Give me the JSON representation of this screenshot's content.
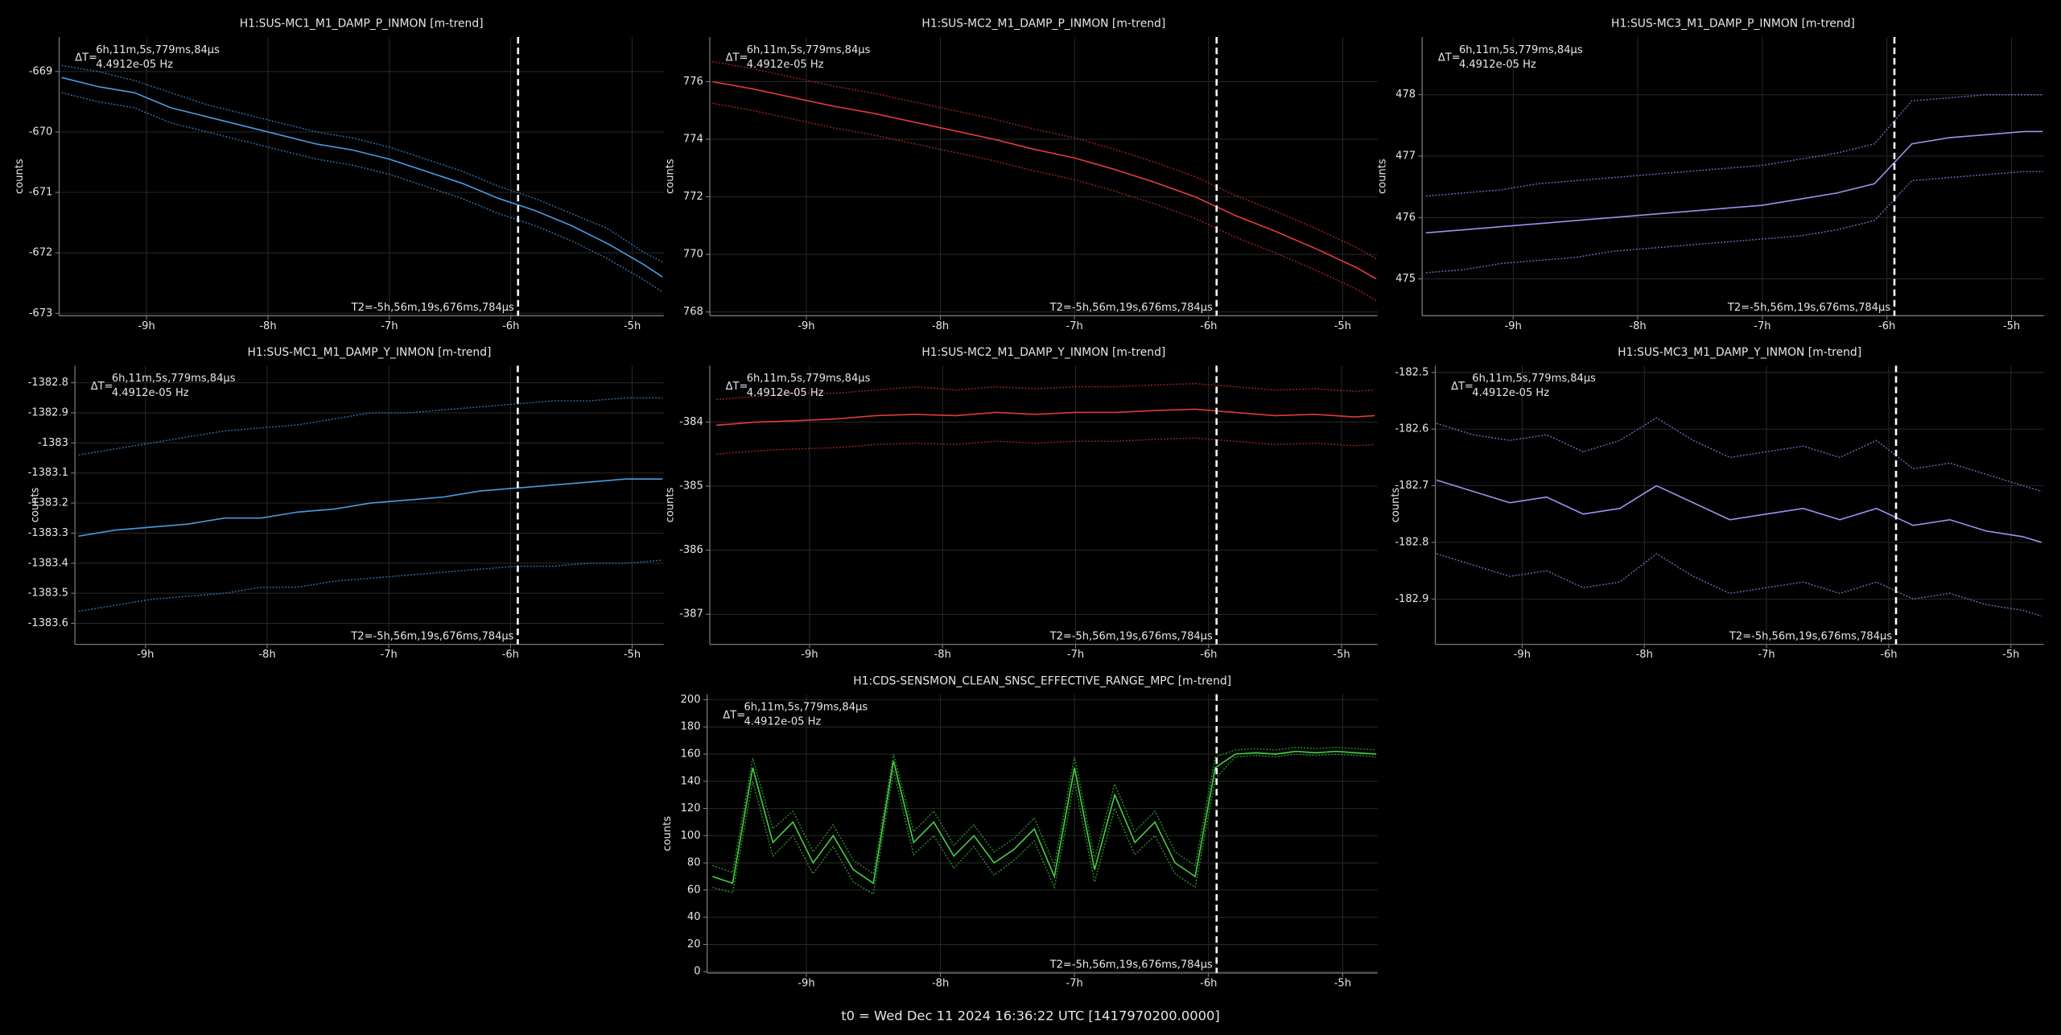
{
  "chart_data": [
    {
      "type": "line",
      "title": "H1:SUS-MC1_M1_DAMP_P_INMON [m-trend]",
      "y_label": "counts",
      "grid": true,
      "delta_label": "ΔT=",
      "delta_value": "6h,11m,5s,779ms,84µs",
      "delta_freq": "4.4912e-05 Hz",
      "t2_label": "T2=-5h,56m,19s,676ms,784µs",
      "cursor_x": -5.94,
      "xlim": [
        -9.72,
        -4.74
      ],
      "xticks": [
        {
          "value": -9,
          "label": "-9h"
        },
        {
          "value": -8,
          "label": "-8h"
        },
        {
          "value": -7,
          "label": "-7h"
        },
        {
          "value": -6,
          "label": "-6h"
        },
        {
          "value": -5,
          "label": "-5h"
        }
      ],
      "ylim": [
        -673.04,
        -668.43
      ],
      "yticks": [
        -673,
        -672,
        -671,
        -670,
        -669
      ],
      "x": [
        -9.7,
        -9.4,
        -9.1,
        -8.8,
        -8.5,
        -8.2,
        -7.9,
        -7.6,
        -7.3,
        -7.0,
        -6.7,
        -6.4,
        -6.1,
        -5.8,
        -5.5,
        -5.2,
        -4.9,
        -4.75
      ],
      "series": [
        {
          "color": "#2f6ea8",
          "style": "dotted",
          "values": [
            -668.9,
            -669.0,
            -669.15,
            -669.35,
            -669.55,
            -669.7,
            -669.85,
            -670.0,
            -670.1,
            -670.25,
            -670.45,
            -670.65,
            -670.9,
            -671.1,
            -671.35,
            -671.6,
            -672.0,
            -672.15
          ]
        },
        {
          "color": "#2f6ea8",
          "style": "dotted",
          "values": [
            -669.35,
            -669.5,
            -669.6,
            -669.85,
            -670.0,
            -670.15,
            -670.3,
            -670.45,
            -670.55,
            -670.7,
            -670.9,
            -671.1,
            -671.35,
            -671.55,
            -671.8,
            -672.1,
            -672.45,
            -672.65
          ]
        },
        {
          "color": "#4a9ae0",
          "style": "solid",
          "values": [
            -669.1,
            -669.25,
            -669.35,
            -669.6,
            -669.75,
            -669.9,
            -670.05,
            -670.2,
            -670.3,
            -670.45,
            -670.65,
            -670.85,
            -671.1,
            -671.3,
            -671.55,
            -671.85,
            -672.2,
            -672.4
          ]
        }
      ]
    },
    {
      "type": "line",
      "title": "H1:SUS-MC2_M1_DAMP_P_INMON [m-trend]",
      "y_label": "counts",
      "grid": true,
      "delta_label": "ΔT=",
      "delta_value": "6h,11m,5s,779ms,84µs",
      "delta_freq": "4.4912e-05 Hz",
      "t2_label": "T2=-5h,56m,19s,676ms,784µs",
      "cursor_x": -5.94,
      "xlim": [
        -9.72,
        -4.74
      ],
      "xticks": [
        {
          "value": -9,
          "label": "-9h"
        },
        {
          "value": -8,
          "label": "-8h"
        },
        {
          "value": -7,
          "label": "-7h"
        },
        {
          "value": -6,
          "label": "-6h"
        },
        {
          "value": -5,
          "label": "-5h"
        }
      ],
      "ylim": [
        767.87,
        777.55
      ],
      "yticks": [
        768,
        770,
        772,
        774,
        776
      ],
      "x": [
        -9.7,
        -9.4,
        -9.1,
        -8.8,
        -8.5,
        -8.2,
        -7.9,
        -7.6,
        -7.3,
        -7.0,
        -6.7,
        -6.4,
        -6.1,
        -5.8,
        -5.5,
        -5.2,
        -4.9,
        -4.75
      ],
      "series": [
        {
          "color": "#a02020",
          "style": "dotted",
          "values": [
            776.7,
            776.45,
            776.15,
            775.85,
            775.6,
            775.3,
            775.0,
            774.7,
            774.35,
            774.05,
            773.65,
            773.2,
            772.7,
            772.05,
            771.5,
            770.9,
            770.25,
            769.85
          ]
        },
        {
          "color": "#a02020",
          "style": "dotted",
          "values": [
            775.25,
            775.0,
            774.7,
            774.4,
            774.15,
            773.85,
            773.55,
            773.25,
            772.9,
            772.6,
            772.2,
            771.75,
            771.25,
            770.6,
            770.05,
            769.45,
            768.8,
            768.4
          ]
        },
        {
          "color": "#e03a3a",
          "style": "solid",
          "values": [
            776.0,
            775.75,
            775.45,
            775.15,
            774.9,
            774.6,
            774.3,
            774.0,
            773.65,
            773.35,
            772.95,
            772.5,
            772.0,
            771.35,
            770.8,
            770.2,
            769.55,
            769.15
          ]
        }
      ]
    },
    {
      "type": "line",
      "title": "H1:SUS-MC3_M1_DAMP_P_INMON [m-trend]",
      "y_label": "counts",
      "grid": true,
      "delta_label": "ΔT=",
      "delta_value": "6h,11m,5s,779ms,84µs",
      "delta_freq": "4.4912e-05 Hz",
      "t2_label": "T2=-5h,56m,19s,676ms,784µs",
      "cursor_x": -5.94,
      "xlim": [
        -9.73,
        -4.74
      ],
      "xticks": [
        {
          "value": -9,
          "label": "-9h"
        },
        {
          "value": -8,
          "label": "-8h"
        },
        {
          "value": -7,
          "label": "-7h"
        },
        {
          "value": -6,
          "label": "-6h"
        },
        {
          "value": -5,
          "label": "-5h"
        }
      ],
      "ylim": [
        474.4,
        478.94
      ],
      "yticks": [
        475,
        476,
        477,
        478
      ],
      "x": [
        -9.7,
        -9.4,
        -9.1,
        -8.8,
        -8.5,
        -8.2,
        -7.9,
        -7.6,
        -7.3,
        -7.0,
        -6.7,
        -6.4,
        -6.1,
        -5.8,
        -5.5,
        -5.2,
        -4.9,
        -4.75
      ],
      "series": [
        {
          "color": "#7a62b8",
          "style": "dotted",
          "values": [
            476.35,
            476.4,
            476.45,
            476.55,
            476.6,
            476.65,
            476.7,
            476.75,
            476.8,
            476.85,
            476.95,
            477.05,
            477.2,
            477.9,
            477.95,
            478.0,
            478.0,
            478.0
          ]
        },
        {
          "color": "#7a62b8",
          "style": "dotted",
          "values": [
            475.1,
            475.15,
            475.25,
            475.3,
            475.35,
            475.45,
            475.5,
            475.55,
            475.6,
            475.65,
            475.7,
            475.8,
            475.95,
            476.6,
            476.65,
            476.7,
            476.75,
            476.75
          ]
        },
        {
          "color": "#a98af0",
          "style": "solid",
          "values": [
            475.75,
            475.8,
            475.85,
            475.9,
            475.95,
            476.0,
            476.05,
            476.1,
            476.15,
            476.2,
            476.3,
            476.4,
            476.55,
            477.2,
            477.3,
            477.35,
            477.4,
            477.4
          ]
        }
      ]
    },
    {
      "type": "line",
      "title": "H1:SUS-MC1_M1_DAMP_Y_INMON [m-trend]",
      "y_label": "counts",
      "grid": true,
      "delta_label": "ΔT=",
      "delta_value": "6h,11m,5s,779ms,84µs",
      "delta_freq": "4.4912e-05 Hz",
      "t2_label": "T2=-5h,56m,19s,676ms,784µs",
      "cursor_x": -5.94,
      "xlim": [
        -9.58,
        -4.74
      ],
      "xticks": [
        {
          "value": -9,
          "label": "-9h"
        },
        {
          "value": -8,
          "label": "-8h"
        },
        {
          "value": -7,
          "label": "-7h"
        },
        {
          "value": -6,
          "label": "-6h"
        },
        {
          "value": -5,
          "label": "-5h"
        }
      ],
      "ylim": [
        -1383.67,
        -1382.743
      ],
      "yticks": [
        -1383.6,
        -1383.5,
        -1383.4,
        -1383.3,
        -1383.2,
        -1383.1,
        -1383,
        -1382.9,
        -1382.8
      ],
      "x": [
        -9.55,
        -9.25,
        -8.95,
        -8.65,
        -8.35,
        -8.05,
        -7.75,
        -7.45,
        -7.15,
        -6.85,
        -6.55,
        -6.25,
        -5.95,
        -5.65,
        -5.35,
        -5.05,
        -4.75
      ],
      "series": [
        {
          "color": "#2f6ea8",
          "style": "dotted",
          "values": [
            -1383.04,
            -1383.02,
            -1383.0,
            -1382.98,
            -1382.96,
            -1382.95,
            -1382.94,
            -1382.92,
            -1382.9,
            -1382.9,
            -1382.89,
            -1382.88,
            -1382.87,
            -1382.86,
            -1382.86,
            -1382.85,
            -1382.85
          ]
        },
        {
          "color": "#2f6ea8",
          "style": "dotted",
          "values": [
            -1383.56,
            -1383.54,
            -1383.52,
            -1383.51,
            -1383.5,
            -1383.48,
            -1383.48,
            -1383.46,
            -1383.45,
            -1383.44,
            -1383.43,
            -1383.42,
            -1383.41,
            -1383.41,
            -1383.4,
            -1383.4,
            -1383.39
          ]
        },
        {
          "color": "#4a9ae0",
          "style": "solid",
          "values": [
            -1383.31,
            -1383.29,
            -1383.28,
            -1383.27,
            -1383.25,
            -1383.25,
            -1383.23,
            -1383.22,
            -1383.2,
            -1383.19,
            -1383.18,
            -1383.16,
            -1383.15,
            -1383.14,
            -1383.13,
            -1383.12,
            -1383.12
          ]
        }
      ]
    },
    {
      "type": "line",
      "title": "H1:SUS-MC2_M1_DAMP_Y_INMON [m-trend]",
      "y_label": "counts",
      "grid": true,
      "delta_label": "ΔT=",
      "delta_value": "6h,11m,5s,779ms,84µs",
      "delta_freq": "4.4912e-05 Hz",
      "t2_label": "T2=-5h,56m,19s,676ms,784µs",
      "cursor_x": -5.94,
      "xlim": [
        -9.75,
        -4.73
      ],
      "xticks": [
        {
          "value": -9,
          "label": "-9h"
        },
        {
          "value": -8,
          "label": "-8h"
        },
        {
          "value": -7,
          "label": "-7h"
        },
        {
          "value": -6,
          "label": "-6h"
        },
        {
          "value": -5,
          "label": "-5h"
        }
      ],
      "ylim": [
        -387.47,
        -383.12
      ],
      "yticks": [
        -387,
        -386,
        -385,
        -384
      ],
      "x": [
        -9.7,
        -9.4,
        -9.1,
        -8.8,
        -8.5,
        -8.2,
        -7.9,
        -7.6,
        -7.3,
        -7.0,
        -6.7,
        -6.4,
        -6.1,
        -5.8,
        -5.5,
        -5.2,
        -4.9,
        -4.75
      ],
      "series": [
        {
          "color": "#a02020",
          "style": "dotted",
          "values": [
            -383.65,
            -383.6,
            -383.55,
            -383.55,
            -383.5,
            -383.45,
            -383.5,
            -383.45,
            -383.48,
            -383.45,
            -383.45,
            -383.42,
            -383.4,
            -383.45,
            -383.5,
            -383.48,
            -383.52,
            -383.5
          ]
        },
        {
          "color": "#a02020",
          "style": "dotted",
          "values": [
            -384.5,
            -384.45,
            -384.42,
            -384.4,
            -384.35,
            -384.33,
            -384.35,
            -384.3,
            -384.33,
            -384.3,
            -384.3,
            -384.27,
            -384.25,
            -384.3,
            -384.35,
            -384.33,
            -384.37,
            -384.35
          ]
        },
        {
          "color": "#e03a3a",
          "style": "solid",
          "values": [
            -384.05,
            -384.0,
            -383.98,
            -383.95,
            -383.9,
            -383.88,
            -383.9,
            -383.85,
            -383.88,
            -383.85,
            -383.85,
            -383.82,
            -383.8,
            -383.85,
            -383.9,
            -383.88,
            -383.92,
            -383.9
          ]
        }
      ]
    },
    {
      "type": "line",
      "title": "H1:SUS-MC3_M1_DAMP_Y_INMON [m-trend]",
      "y_label": "counts",
      "grid": true,
      "delta_label": "ΔT=",
      "delta_value": "6h,11m,5s,779ms,84µs",
      "delta_freq": "4.4912e-05 Hz",
      "t2_label": "T2=-5h,56m,19s,676ms,784µs",
      "cursor_x": -5.94,
      "xlim": [
        -9.71,
        -4.73
      ],
      "xticks": [
        {
          "value": -9,
          "label": "-9h"
        },
        {
          "value": -8,
          "label": "-8h"
        },
        {
          "value": -7,
          "label": "-7h"
        },
        {
          "value": -6,
          "label": "-6h"
        },
        {
          "value": -5,
          "label": "-5h"
        }
      ],
      "ylim": [
        -182.98,
        -182.488
      ],
      "yticks": [
        -182.9,
        -182.8,
        -182.7,
        -182.6,
        -182.5
      ],
      "x": [
        -9.7,
        -9.4,
        -9.1,
        -8.8,
        -8.5,
        -8.2,
        -7.9,
        -7.6,
        -7.3,
        -7.0,
        -6.7,
        -6.4,
        -6.1,
        -5.8,
        -5.5,
        -5.2,
        -4.9,
        -4.75
      ],
      "series": [
        {
          "color": "#7a62b8",
          "style": "dotted",
          "values": [
            -182.59,
            -182.61,
            -182.62,
            -182.61,
            -182.64,
            -182.62,
            -182.58,
            -182.62,
            -182.65,
            -182.64,
            -182.63,
            -182.65,
            -182.62,
            -182.67,
            -182.66,
            -182.68,
            -182.7,
            -182.71
          ]
        },
        {
          "color": "#7a62b8",
          "style": "dotted",
          "values": [
            -182.82,
            -182.84,
            -182.86,
            -182.85,
            -182.88,
            -182.87,
            -182.82,
            -182.86,
            -182.89,
            -182.88,
            -182.87,
            -182.89,
            -182.87,
            -182.9,
            -182.89,
            -182.91,
            -182.92,
            -182.93
          ]
        },
        {
          "color": "#a98af0",
          "style": "solid",
          "values": [
            -182.69,
            -182.71,
            -182.73,
            -182.72,
            -182.75,
            -182.74,
            -182.7,
            -182.73,
            -182.76,
            -182.75,
            -182.74,
            -182.76,
            -182.74,
            -182.77,
            -182.76,
            -182.78,
            -182.79,
            -182.8
          ]
        }
      ]
    },
    {
      "type": "line",
      "title": "H1:CDS-SENSMON_CLEAN_SNSC_EFFECTIVE_RANGE_MPC [m-trend]",
      "y_label": "counts",
      "grid": true,
      "delta_label": "ΔT=",
      "delta_value": "6h,11m,5s,779ms,84µs",
      "delta_freq": "4.4912e-05 Hz",
      "t2_label": "T2=-5h,56m,19s,676ms,784µs",
      "cursor_x": -5.94,
      "xlim": [
        -9.74,
        -4.74
      ],
      "xticks": [
        {
          "value": -9,
          "label": "-9h"
        },
        {
          "value": -8,
          "label": "-8h"
        },
        {
          "value": -7,
          "label": "-7h"
        },
        {
          "value": -6,
          "label": "-6h"
        },
        {
          "value": -5,
          "label": "-5h"
        }
      ],
      "ylim": [
        -1,
        204
      ],
      "yticks": [
        0,
        20,
        40,
        60,
        80,
        100,
        120,
        140,
        160,
        180,
        200
      ],
      "x": [
        -9.7,
        -9.55,
        -9.4,
        -9.25,
        -9.1,
        -8.95,
        -8.8,
        -8.65,
        -8.5,
        -8.35,
        -8.2,
        -8.05,
        -7.9,
        -7.75,
        -7.6,
        -7.45,
        -7.3,
        -7.15,
        -7.0,
        -6.85,
        -6.7,
        -6.55,
        -6.4,
        -6.25,
        -6.1,
        -5.95,
        -5.8,
        -5.65,
        -5.5,
        -5.35,
        -5.2,
        -5.05,
        -4.9,
        -4.75
      ],
      "series": [
        {
          "color": "#2a8a2a",
          "style": "dotted",
          "values": [
            78,
            73,
            157,
            105,
            118,
            88,
            108,
            82,
            72,
            160,
            103,
            118,
            93,
            108,
            88,
            98,
            113,
            78,
            158,
            83,
            138,
            103,
            118,
            88,
            78,
            158,
            163,
            164,
            163,
            165,
            164,
            165,
            164,
            163
          ]
        },
        {
          "color": "#2a8a2a",
          "style": "dotted",
          "values": [
            62,
            58,
            140,
            85,
            100,
            72,
            92,
            66,
            57,
            148,
            86,
            100,
            76,
            92,
            71,
            82,
            96,
            62,
            140,
            66,
            120,
            86,
            100,
            72,
            62,
            142,
            158,
            159,
            158,
            160,
            159,
            160,
            159,
            158
          ]
        },
        {
          "color": "#44cc44",
          "style": "solid",
          "values": [
            70,
            65,
            150,
            95,
            110,
            80,
            100,
            75,
            65,
            155,
            95,
            110,
            85,
            100,
            80,
            90,
            105,
            70,
            150,
            75,
            130,
            95,
            110,
            80,
            70,
            150,
            160,
            161,
            160,
            162,
            161,
            162,
            161,
            160
          ]
        }
      ]
    }
  ],
  "footer": "t0 = Wed Dec 11 2024 16:36:22 UTC [1417970200.0000]"
}
